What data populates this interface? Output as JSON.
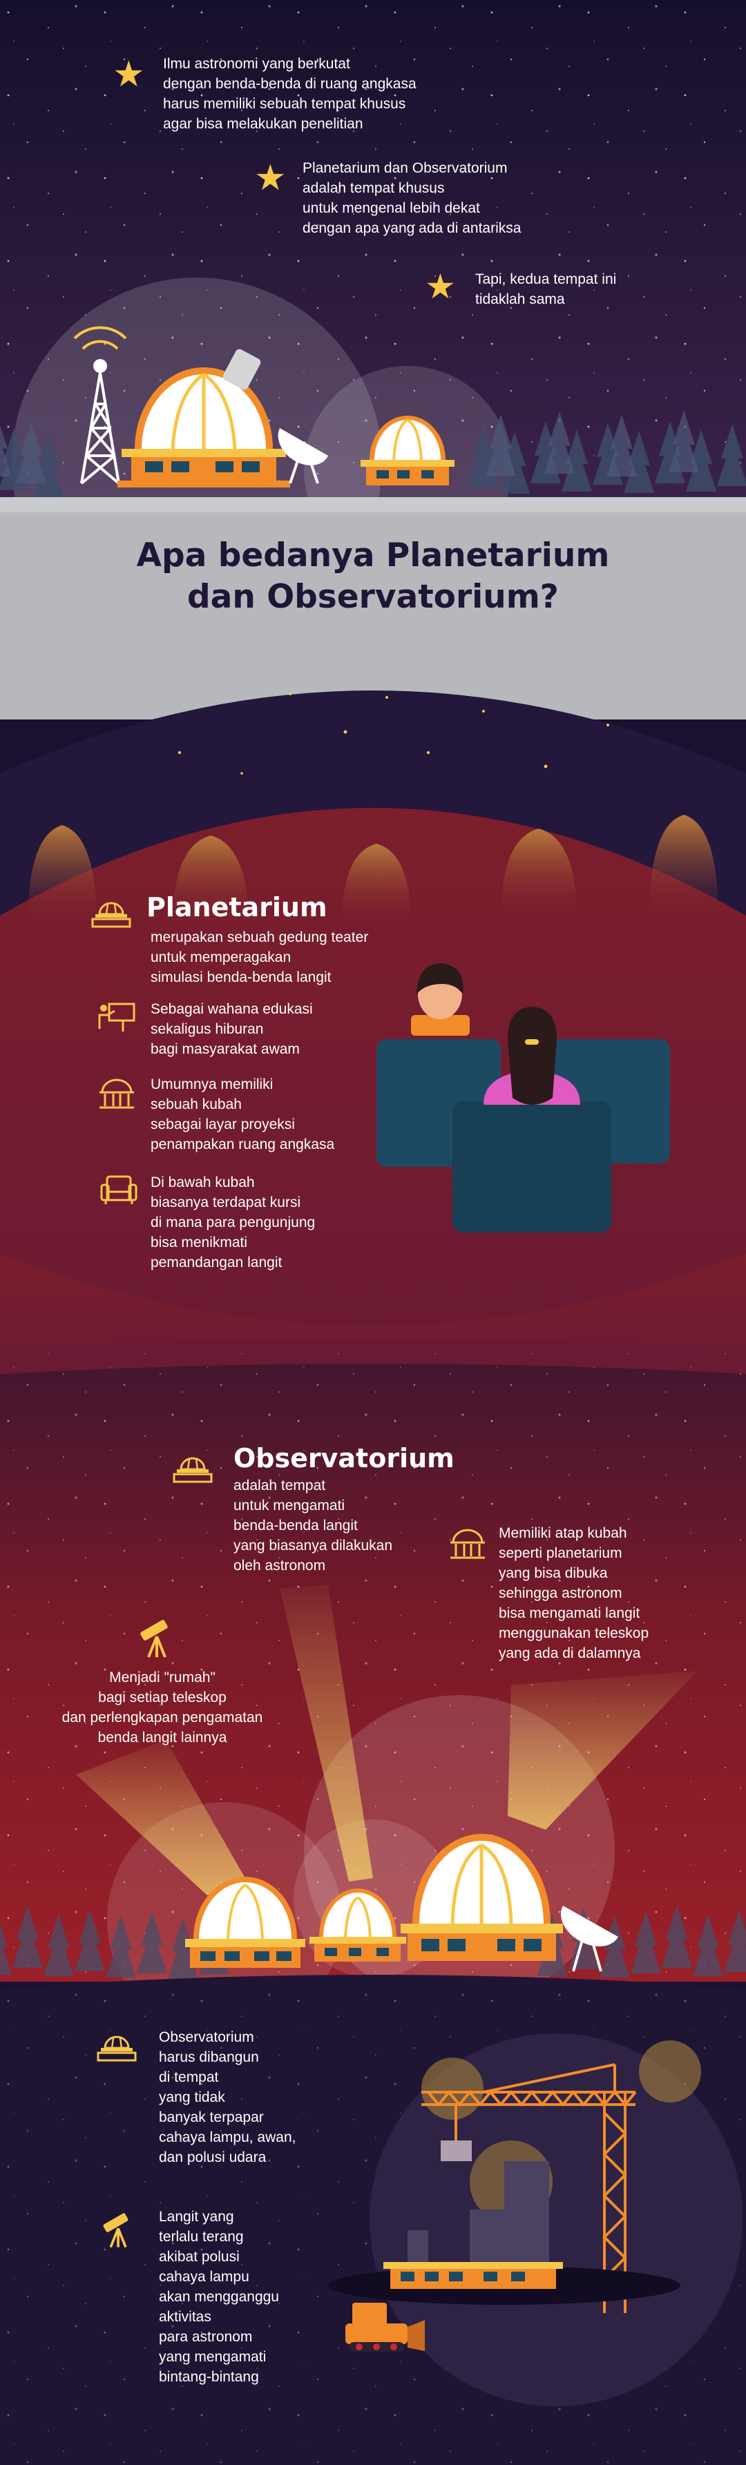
{
  "intro": {
    "p1": "Ilmu astronomi yang berkutat\ndengan benda-benda di ruang angkasa\nharus memiliki sebuah tempat khusus\nagar bisa melakukan penelitian",
    "p2": "Planetarium dan Observatorium\nadalah tempat khusus\nuntuk mengenal lebih dekat\ndengan apa yang ada di antariksa",
    "p3": "Tapi, kedua tempat ini\ntidaklah sama"
  },
  "banner": {
    "line1": "Apa bedanya Planetarium",
    "line2": "dan Observatorium?"
  },
  "planetarium": {
    "title": "Planetarium",
    "desc": "merupakan sebuah gedung teater\nuntuk memperagakan\nsimulasi benda-benda langit",
    "points": [
      {
        "icon": "teacher-board-icon",
        "text": "Sebagai wahana edukasi\nsekaligus hiburan\nbagi masyarakat awam"
      },
      {
        "icon": "dome-icon",
        "text": "Umumnya memiliki\nsebuah kubah\nsebagai layar proyeksi\npenampakan ruang angkasa"
      },
      {
        "icon": "armchair-icon",
        "text": "Di bawah kubah\nbiasanya terdapat kursi\ndi mana para pengunjung\nbisa menikmati\npemandangan langit"
      }
    ]
  },
  "observatorium": {
    "title": "Observatorium",
    "desc": "adalah tempat\nuntuk mengamati\nbenda-benda langit\nyang biasanya dilakukan\noleh astronom",
    "roof": "Memiliki atap kubah\nseperti planetarium\nyang bisa dibuka\nsehingga astronom\nbisa mengamati langit\nmenggunakan teleskop\nyang ada di dalamnya",
    "home": "Menjadi \"rumah\"\nbagi setiap teleskop\ndan perlengkapan pengamatan\nbenda langit lainnya"
  },
  "location": {
    "build": "Observatorium\nharus dibangun\ndi tempat\nyang tidak\nbanyak terpapar\ncahaya lampu, awan,\ndan polusi udara",
    "light": "Langit yang\nterlalu terang\nakibat polusi\ncahaya lampu\nakan mengganggu\naktivitas\npara astronom\nyang mengamati\nbintang-bintang"
  },
  "colors": {
    "night": "#1f1537",
    "gray_band": "#b7b9bd",
    "maroon": "#7a1c2a",
    "red_sky": "#8e1d26",
    "accent_gold": "#f6c648",
    "orange": "#f28c2a",
    "teal_seat": "#1d4a62"
  }
}
